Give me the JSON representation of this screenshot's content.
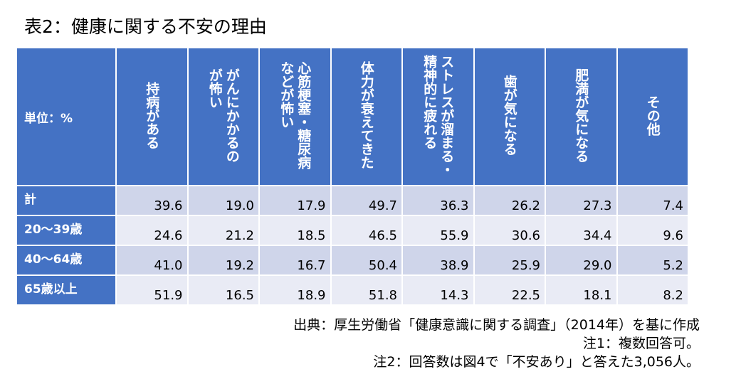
{
  "title": "表2：健康に関する不安の理由",
  "table": {
    "corner_label": "単位：%",
    "columns": [
      "持病がある",
      "がんにかかるの\nが怖い",
      "心筋梗塞・糖尿病\nなどが怖い",
      "体力が衰えてきた",
      "ストレスが溜まる・\n精神的に疲れる",
      "歯が気になる",
      "肥満が気になる",
      "その他"
    ],
    "rows": [
      {
        "label": "計",
        "values": [
          "39.6",
          "19.0",
          "17.9",
          "49.7",
          "36.3",
          "26.2",
          "27.3",
          "7.4"
        ]
      },
      {
        "label": "20～39歳",
        "values": [
          "24.6",
          "21.2",
          "18.5",
          "46.5",
          "55.9",
          "30.6",
          "34.4",
          "9.6"
        ]
      },
      {
        "label": "40～64歳",
        "values": [
          "41.0",
          "19.2",
          "16.7",
          "50.4",
          "38.9",
          "25.9",
          "29.0",
          "5.2"
        ]
      },
      {
        "label": "65歳以上",
        "values": [
          "51.9",
          "16.5",
          "18.9",
          "51.8",
          "14.3",
          "22.5",
          "18.1",
          "8.2"
        ]
      }
    ]
  },
  "notes": {
    "source": "出典：厚生労働省「健康意識に関する調査」（2014年）を基に作成",
    "note1": "注1：複数回答可。",
    "note2": "注2：回答数は図4で「不安あり」と答えた3,056人。"
  },
  "colors": {
    "header_bg": "#4472c4",
    "row_band_dark": "#cfd5ea",
    "row_band_light": "#e9ebf5"
  }
}
